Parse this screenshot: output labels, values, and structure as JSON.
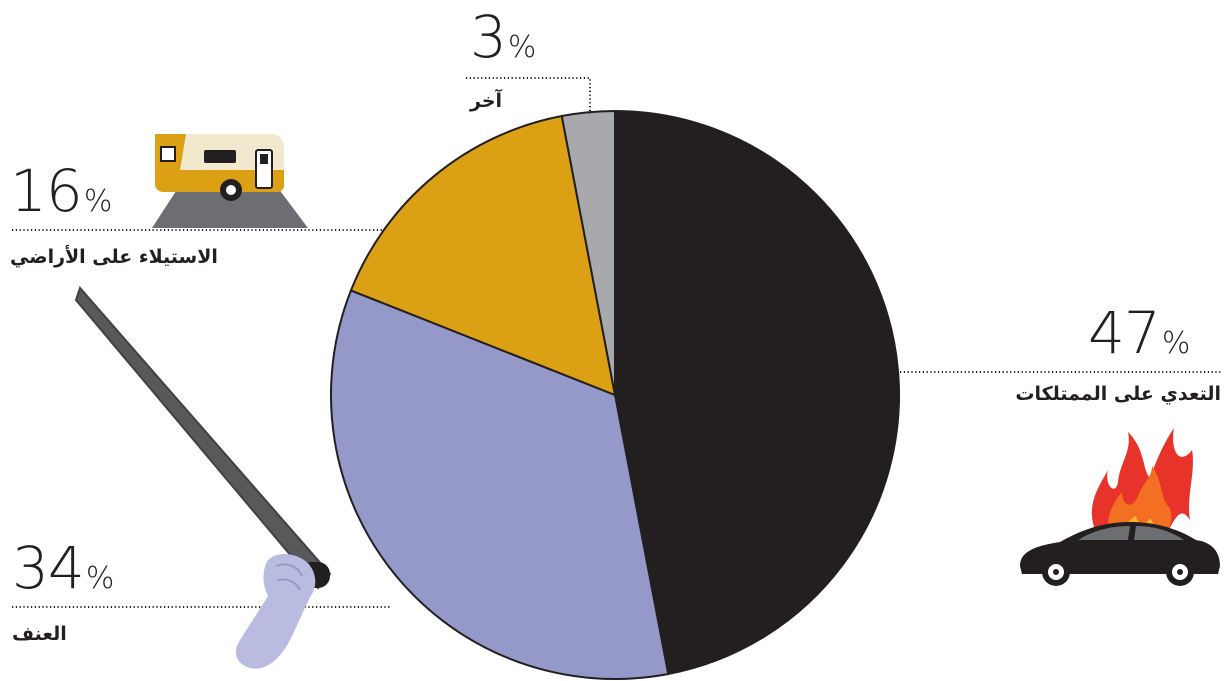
{
  "chart_data": {
    "type": "pie",
    "slices": [
      {
        "label": "التعدي على الممتلكات",
        "value": 47,
        "value_label": "47",
        "color": "#231f20"
      },
      {
        "label": "العنف",
        "value": 34,
        "value_label": "34",
        "color": "#9499c9"
      },
      {
        "label": "الاستيلاء على الأراضي",
        "value": 16,
        "value_label": "16",
        "color": "#dba014"
      },
      {
        "label": "آخر",
        "value": 3,
        "value_label": "3",
        "color": "#a7a9ac"
      }
    ],
    "unit": "%",
    "legend": "labels beside slices with dotted leader lines",
    "icons": [
      "burning-car-icon",
      "baseball-bat-fist-icon",
      "caravan-trailer-icon"
    ]
  }
}
